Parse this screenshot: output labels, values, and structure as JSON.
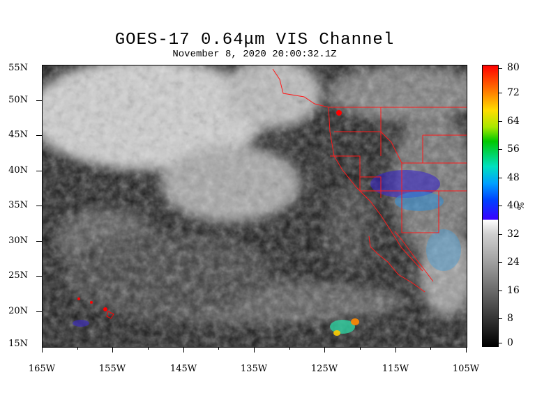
{
  "title": "GOES-17  0.64μm VIS Channel",
  "subtitle": "November  8,  2020 20:00:32.1Z",
  "lat_labels": [
    "55N",
    "50N",
    "45N",
    "40N",
    "35N",
    "30N",
    "25N",
    "20N",
    "15N"
  ],
  "lon_labels": [
    "165W",
    "155W",
    "145W",
    "135W",
    "125W",
    "115W",
    "105W"
  ],
  "colorbar": {
    "labels": [
      "80",
      "72",
      "64",
      "56",
      "48",
      "40",
      "32",
      "24",
      "16",
      "8",
      "0"
    ],
    "unit": "%"
  }
}
